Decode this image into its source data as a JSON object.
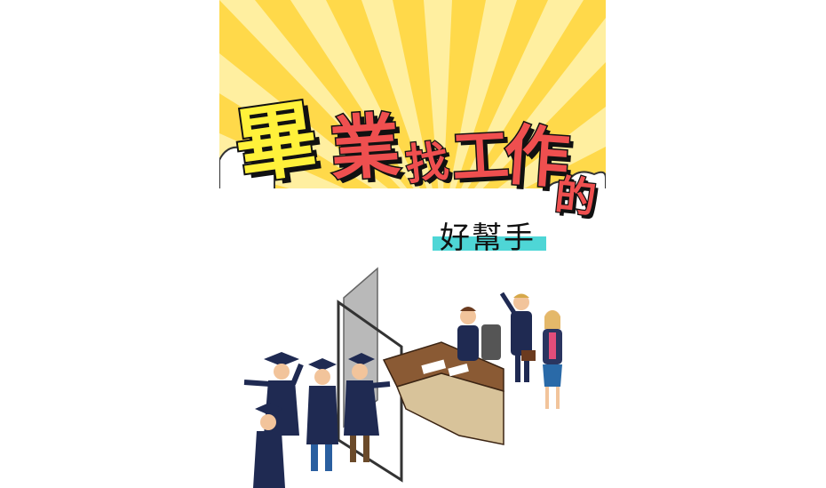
{
  "title": {
    "chars": [
      "畢",
      "業",
      "找",
      "工",
      "作",
      "的"
    ]
  },
  "subtitle": "好幫手",
  "colors": {
    "background": "#ffffff",
    "sky_light": "#fff3b0",
    "sky_dark": "#ffd94a",
    "title_yellow": "#fff13a",
    "title_red": "#ef4f4f",
    "subtitle_bar": "#4ed6d6",
    "gown": "#1f2a52",
    "desk": "#8a5a34"
  },
  "icons": [
    "sunburst-icon",
    "cloud-icon",
    "graduate-icon",
    "office-door-icon",
    "desk-icon",
    "interviewer-icon",
    "job-seeker-icon"
  ]
}
